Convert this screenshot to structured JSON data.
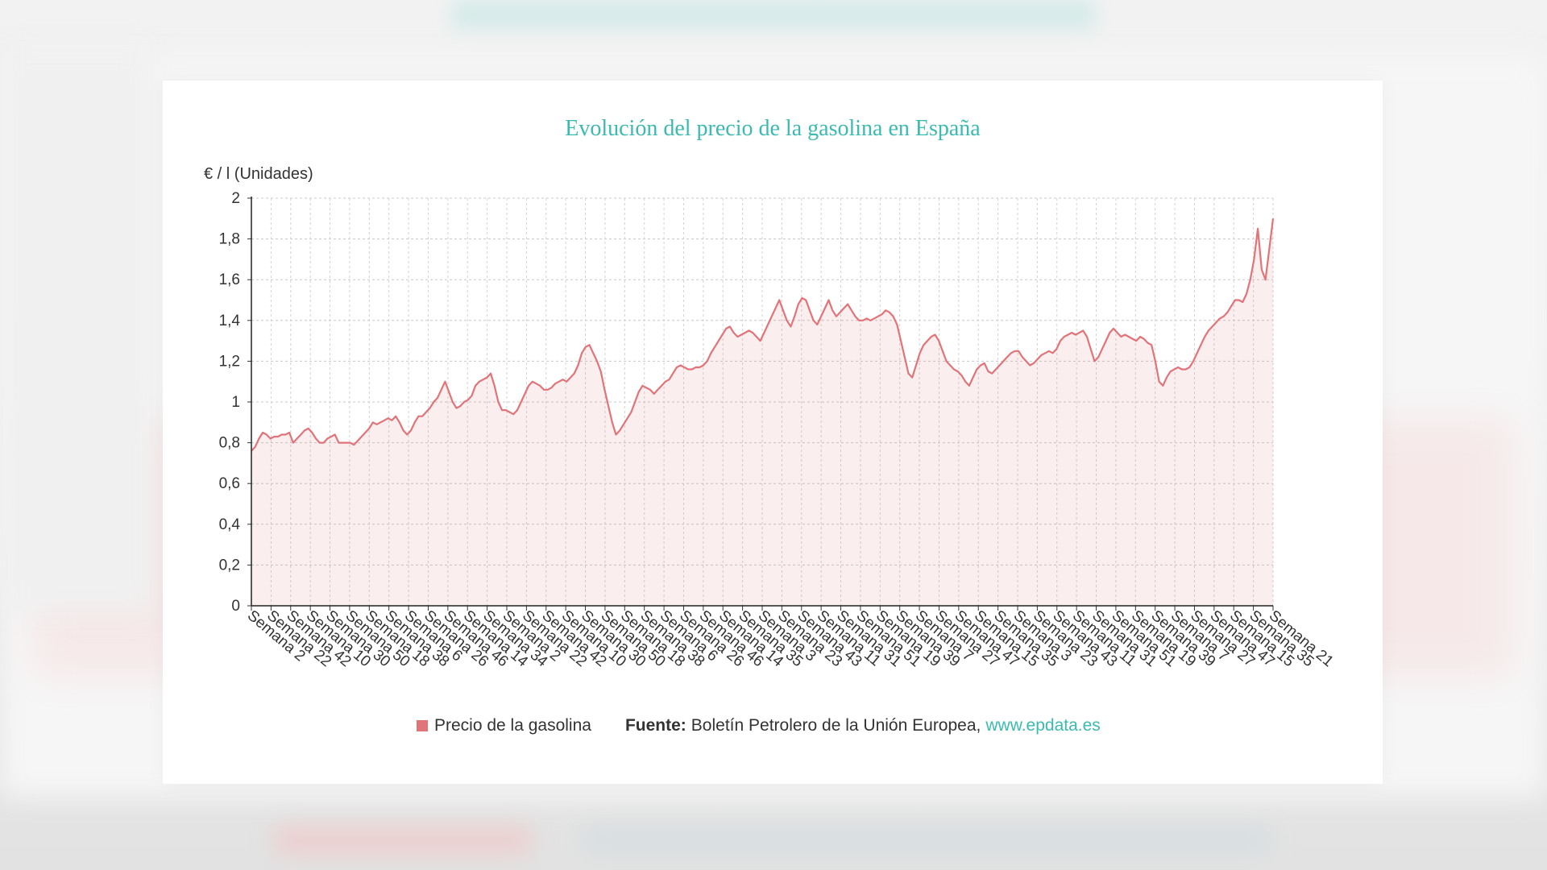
{
  "chart_data": {
    "type": "area",
    "title": "Evolución del precio de la gasolina en España",
    "ylabel": "€ / l (Unidades)",
    "xlabel": "",
    "ylim": [
      0,
      2
    ],
    "yticks": [
      "0",
      "0,2",
      "0,4",
      "0,6",
      "0,8",
      "1",
      "1,2",
      "1,4",
      "1,6",
      "1,8",
      "2"
    ],
    "grid": true,
    "legend_position": "bottom",
    "x_tick_labels": [
      "Semana 2",
      "Semana 22",
      "Semana 42",
      "Semana 10",
      "Semana 30",
      "Semana 50",
      "Semana 18",
      "Semana 38",
      "Semana 6",
      "Semana 26",
      "Semana 46",
      "Semana 14",
      "Semana 34",
      "Semana 2",
      "Semana 22",
      "Semana 42",
      "Semana 10",
      "Semana 30",
      "Semana 50",
      "Semana 18",
      "Semana 38",
      "Semana 6",
      "Semana 26",
      "Semana 46",
      "Semana 14",
      "Semana 35",
      "Semana 3",
      "Semana 23",
      "Semana 43",
      "Semana 11",
      "Semana 31",
      "Semana 51",
      "Semana 19",
      "Semana 39",
      "Semana 7",
      "Semana 27",
      "Semana 47",
      "Semana 15",
      "Semana 35",
      "Semana 3",
      "Semana 23",
      "Semana 43",
      "Semana 11",
      "Semana 31",
      "Semana 51",
      "Semana 19",
      "Semana 39",
      "Semana 7",
      "Semana 27",
      "Semana 47",
      "Semana 15",
      "Semana 35",
      "Semana 21"
    ],
    "series": [
      {
        "name": "Precio de la gasolina",
        "color": "#e07479",
        "values": [
          0.76,
          0.78,
          0.82,
          0.85,
          0.84,
          0.82,
          0.83,
          0.83,
          0.84,
          0.84,
          0.85,
          0.8,
          0.82,
          0.84,
          0.86,
          0.87,
          0.85,
          0.82,
          0.8,
          0.8,
          0.82,
          0.83,
          0.84,
          0.8,
          0.8,
          0.8,
          0.8,
          0.79,
          0.81,
          0.83,
          0.85,
          0.87,
          0.9,
          0.89,
          0.9,
          0.91,
          0.92,
          0.91,
          0.93,
          0.9,
          0.86,
          0.84,
          0.86,
          0.9,
          0.93,
          0.93,
          0.95,
          0.97,
          1.0,
          1.02,
          1.06,
          1.1,
          1.05,
          1.0,
          0.97,
          0.98,
          1.0,
          1.01,
          1.03,
          1.08,
          1.1,
          1.11,
          1.12,
          1.14,
          1.08,
          1.0,
          0.96,
          0.96,
          0.95,
          0.94,
          0.96,
          1.0,
          1.04,
          1.08,
          1.1,
          1.09,
          1.08,
          1.06,
          1.06,
          1.07,
          1.09,
          1.1,
          1.11,
          1.1,
          1.12,
          1.14,
          1.18,
          1.24,
          1.27,
          1.28,
          1.24,
          1.2,
          1.15,
          1.06,
          0.98,
          0.9,
          0.84,
          0.86,
          0.89,
          0.92,
          0.95,
          1.0,
          1.05,
          1.08,
          1.07,
          1.06,
          1.04,
          1.06,
          1.08,
          1.1,
          1.11,
          1.14,
          1.17,
          1.18,
          1.17,
          1.16,
          1.16,
          1.17,
          1.17,
          1.18,
          1.2,
          1.24,
          1.27,
          1.3,
          1.33,
          1.36,
          1.37,
          1.34,
          1.32,
          1.33,
          1.34,
          1.35,
          1.34,
          1.32,
          1.3,
          1.34,
          1.38,
          1.42,
          1.46,
          1.5,
          1.45,
          1.4,
          1.37,
          1.42,
          1.48,
          1.51,
          1.5,
          1.45,
          1.4,
          1.38,
          1.42,
          1.46,
          1.5,
          1.45,
          1.42,
          1.44,
          1.46,
          1.48,
          1.45,
          1.42,
          1.4,
          1.4,
          1.41,
          1.4,
          1.41,
          1.42,
          1.43,
          1.45,
          1.44,
          1.42,
          1.38,
          1.3,
          1.22,
          1.14,
          1.12,
          1.18,
          1.24,
          1.28,
          1.3,
          1.32,
          1.33,
          1.3,
          1.25,
          1.2,
          1.18,
          1.16,
          1.15,
          1.13,
          1.1,
          1.08,
          1.12,
          1.16,
          1.18,
          1.19,
          1.15,
          1.14,
          1.16,
          1.18,
          1.2,
          1.22,
          1.24,
          1.25,
          1.25,
          1.22,
          1.2,
          1.18,
          1.19,
          1.21,
          1.23,
          1.24,
          1.25,
          1.24,
          1.26,
          1.3,
          1.32,
          1.33,
          1.34,
          1.33,
          1.34,
          1.35,
          1.32,
          1.26,
          1.2,
          1.22,
          1.26,
          1.3,
          1.34,
          1.36,
          1.34,
          1.32,
          1.33,
          1.32,
          1.31,
          1.3,
          1.32,
          1.31,
          1.29,
          1.28,
          1.2,
          1.1,
          1.08,
          1.12,
          1.15,
          1.16,
          1.17,
          1.16,
          1.16,
          1.17,
          1.2,
          1.24,
          1.28,
          1.32,
          1.35,
          1.37,
          1.39,
          1.41,
          1.42,
          1.44,
          1.47,
          1.5,
          1.5,
          1.49,
          1.53,
          1.6,
          1.7,
          1.85,
          1.65,
          1.6,
          1.75,
          1.9
        ]
      }
    ]
  },
  "legend": {
    "series_label": "Precio de la gasolina",
    "source_label": "Fuente:",
    "source_text": "Boletín Petrolero de la Unión Europea,",
    "source_link": "www.epdata.es"
  }
}
